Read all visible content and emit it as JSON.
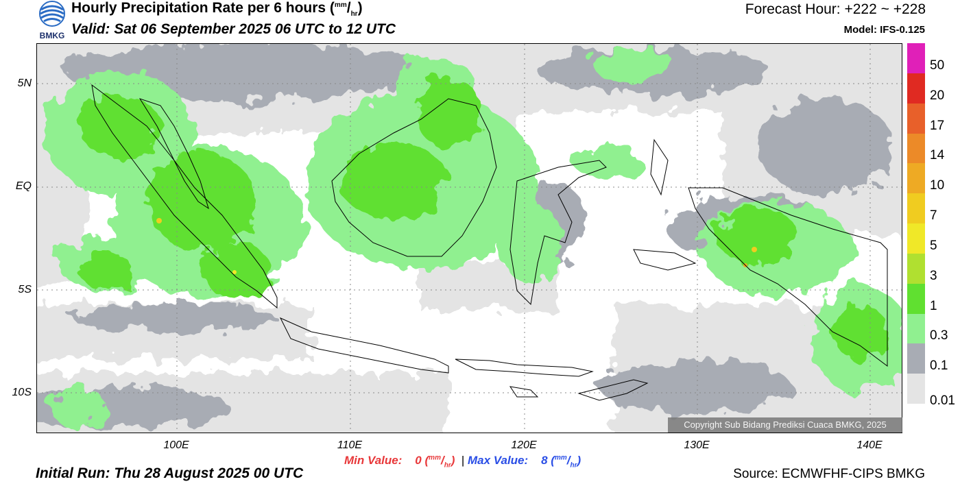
{
  "header": {
    "logo_text": "BMKG",
    "title": "Hourly Precipitation Rate per 6 hours",
    "unit_num": "mm",
    "unit_den": "hr",
    "valid": "Valid: Sat 06 September 2025 06 UTC to 12 UTC",
    "forecast_hour": "Forecast Hour: +222 ~ +228",
    "model": "Model: IFS-0.125"
  },
  "map": {
    "lat_labels": [
      "5N",
      "EQ",
      "5S",
      "10S"
    ],
    "lon_labels": [
      "100E",
      "110E",
      "120E",
      "130E",
      "140E"
    ],
    "copyright": "Copyright Sub Bidang Prediksi Cuaca BMKG, 2025"
  },
  "colorbar": {
    "labels": [
      "50",
      "20",
      "17",
      "14",
      "10",
      "7",
      "5",
      "3",
      "1",
      "0.3",
      "0.1",
      "0.01"
    ],
    "colors": [
      "#e020b8",
      "#e02a22",
      "#e8602a",
      "#ec8a28",
      "#eeaa24",
      "#f0cc20",
      "#f0e828",
      "#b0e030",
      "#60e030",
      "#90f090",
      "#a8acb4",
      "#e4e4e4"
    ]
  },
  "footer": {
    "min_label": "Min Value:",
    "min_value": "0",
    "max_label": "Max Value:",
    "max_value": "8",
    "unit_num": "mm",
    "unit_den": "hr",
    "separator": "|",
    "initial_run": "Initial Run: Thu 28 August 2025 00 UTC",
    "source": "Source: ECMWFHF-CIPS BMKG"
  }
}
